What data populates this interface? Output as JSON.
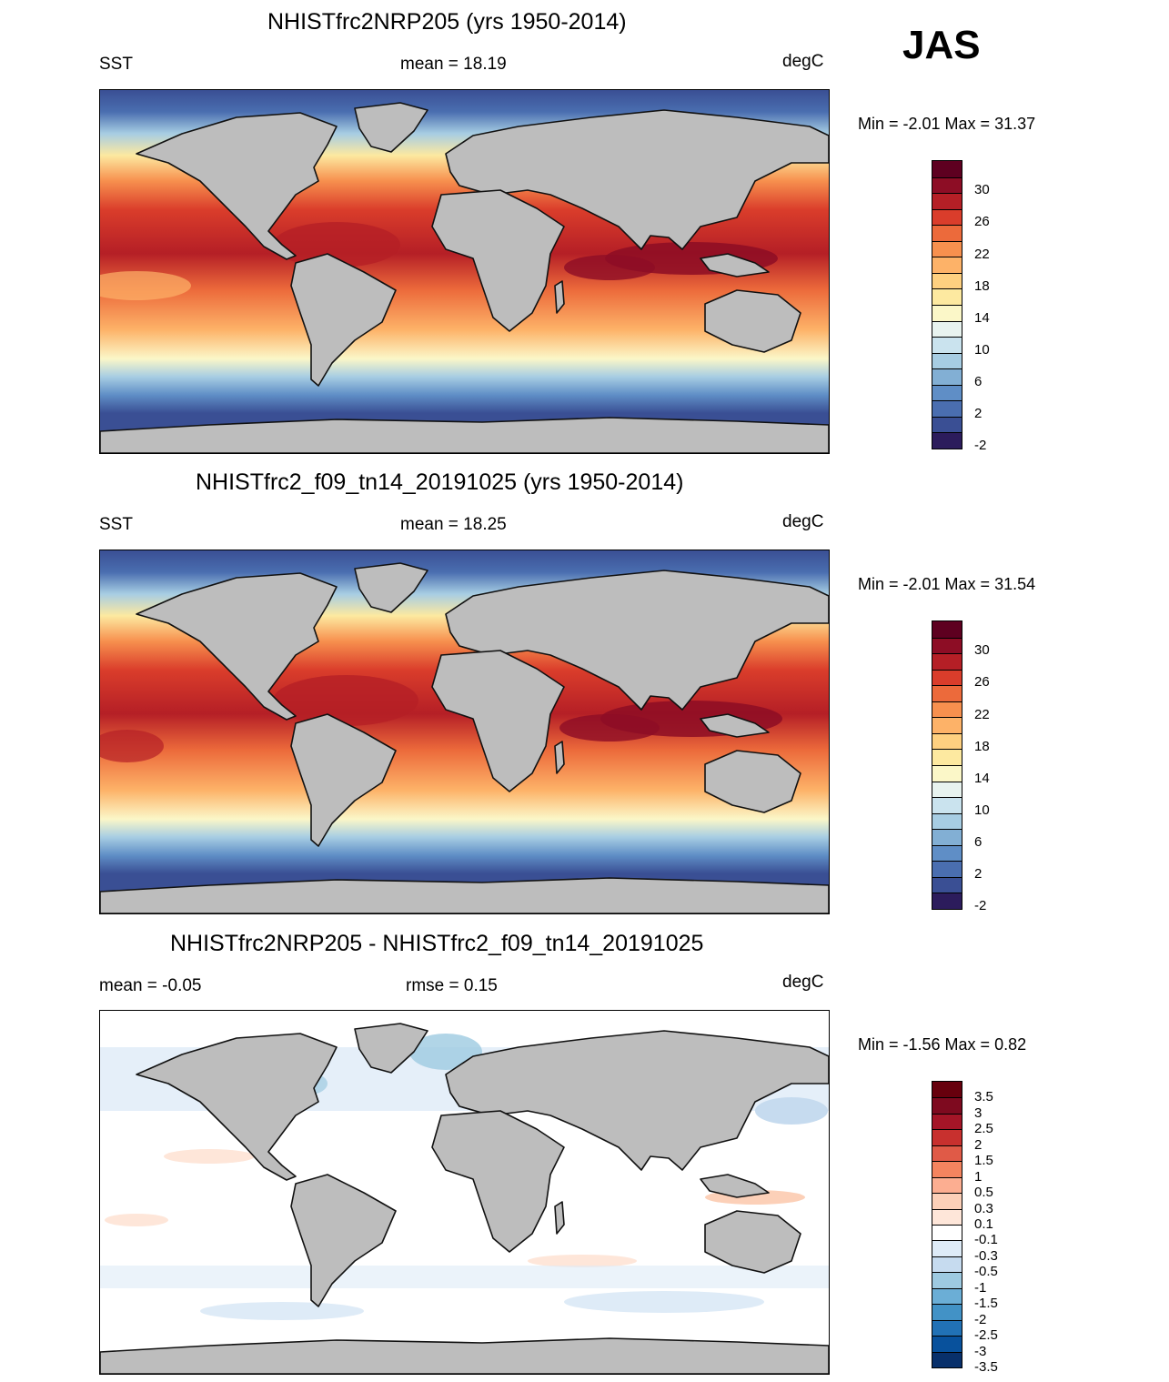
{
  "season": "JAS",
  "units": "degC",
  "panels": [
    {
      "title": "NHISTfrc2NRP205 (yrs 1950-2014)",
      "left_label": "SST",
      "center_label": "mean =  18.19",
      "right_label": "degC",
      "minmax": "Min =  -2.01 Max =  31.37",
      "field": "SST climatology"
    },
    {
      "title": "NHISTfrc2_f09_tn14_20191025 (yrs 1950-2014)",
      "left_label": "SST",
      "center_label": "mean =  18.25",
      "right_label": "degC",
      "minmax": "Min =  -2.01 Max =  31.54",
      "field": "SST climatology"
    },
    {
      "title": "NHISTfrc2NRP205 - NHISTfrc2_f09_tn14_20191025",
      "left_label": "mean =  -0.05",
      "center_label": "rmse =   0.15",
      "right_label": "degC",
      "minmax": "Min =  -1.56 Max =   0.82",
      "field": "SST difference"
    }
  ],
  "colorbars": {
    "sst": {
      "colors": [
        "#2c1c5c",
        "#3a4f94",
        "#4a6eb0",
        "#5f8ec6",
        "#82afd4",
        "#a7cde3",
        "#cae3ee",
        "#e8f3ef",
        "#fbf7c8",
        "#fde9a0",
        "#fed080",
        "#fdb268",
        "#f7904e",
        "#ec6a3b",
        "#da3d2b",
        "#b51f26",
        "#8d0d25",
        "#5e0020"
      ],
      "labels": [
        "30",
        "26",
        "22",
        "18",
        "14",
        "10",
        "6",
        "2",
        "-2"
      ]
    },
    "diff": {
      "colors": [
        "#08306b",
        "#08519c",
        "#2171b5",
        "#4292c6",
        "#6baed6",
        "#9ecae1",
        "#c6dbef",
        "#deebf7",
        "#ffffff",
        "#fee6d9",
        "#fcd0b8",
        "#fcae91",
        "#f4845f",
        "#e05a47",
        "#c8302e",
        "#a41527",
        "#7e0a1f",
        "#67000d"
      ],
      "labels": [
        "3.5",
        "3",
        "2.5",
        "2",
        "1.5",
        "1",
        "0.5",
        "0.3",
        "0.1",
        "-0.1",
        "-0.3",
        "-0.5",
        "-1",
        "-1.5",
        "-2",
        "-2.5",
        "-3",
        "-3.5"
      ]
    }
  }
}
